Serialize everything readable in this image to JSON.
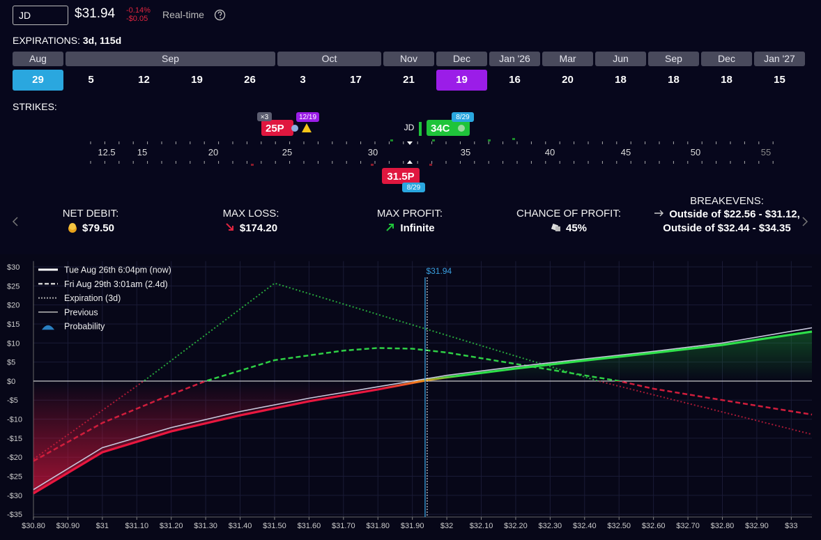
{
  "header": {
    "ticker": "JD",
    "price": "$31.94",
    "change_pct": "-0.14%",
    "change_abs": "-$0.05",
    "mode": "Real-time"
  },
  "expirations": {
    "label": "EXPIRATIONS:",
    "summary": "3d, 115d",
    "months": [
      {
        "name": "Aug",
        "dates": [
          {
            "day": "29",
            "color": "#2aa7df"
          }
        ]
      },
      {
        "name": "Sep",
        "dates": [
          {
            "day": "5"
          },
          {
            "day": "12"
          },
          {
            "day": "19"
          },
          {
            "day": "26"
          }
        ]
      },
      {
        "name": "Oct",
        "dates": [
          {
            "day": "3"
          },
          {
            "day": "17"
          }
        ]
      },
      {
        "name": "Nov",
        "dates": [
          {
            "day": "21"
          }
        ]
      },
      {
        "name": "Dec",
        "dates": [
          {
            "day": "19",
            "color": "#9b1de8"
          }
        ]
      },
      {
        "name": "Jan '26",
        "dates": [
          {
            "day": "16"
          }
        ]
      },
      {
        "name": "Mar",
        "dates": [
          {
            "day": "20"
          }
        ]
      },
      {
        "name": "Jun",
        "dates": [
          {
            "day": "18"
          }
        ]
      },
      {
        "name": "Sep",
        "dates": [
          {
            "day": "18"
          }
        ]
      },
      {
        "name": "Dec",
        "dates": [
          {
            "day": "18"
          }
        ]
      },
      {
        "name": "Jan '27",
        "dates": [
          {
            "day": "15"
          }
        ]
      }
    ]
  },
  "strikes": {
    "label": "STRIKES:",
    "underlying": "JD",
    "ticks": [
      12.5,
      15,
      20,
      25,
      30,
      35,
      40,
      45,
      50,
      55
    ],
    "legs": [
      {
        "label": "25P",
        "count": "×3",
        "expiry": "12/19",
        "color": "#e0173f",
        "badge_color": "#9b1de8"
      },
      {
        "label": "34C",
        "expiry": "8/29",
        "color": "#1fc43a",
        "badge_color": "#2aa7df"
      },
      {
        "label": "31.5P",
        "expiry": "8/29",
        "color": "#e0173f",
        "badge_color": "#2aa7df"
      }
    ]
  },
  "stats": [
    {
      "label": "NET DEBIT:",
      "value": "$79.50"
    },
    {
      "label": "MAX LOSS:",
      "value": "$174.20"
    },
    {
      "label": "MAX PROFIT:",
      "value": "Infinite"
    },
    {
      "label": "CHANCE OF PROFIT:",
      "value": "45%"
    },
    {
      "label": "BREAKEVENS:",
      "value": "Outside of $22.56 - $31.12, Outside of $32.44 - $34.35"
    }
  ],
  "chart_data": {
    "type": "line",
    "xlim": [
      30.8,
      33.06
    ],
    "ylim": [
      -35.7,
      31.5
    ],
    "xticks": [
      {
        "value": 30.8,
        "label": "$30.80"
      },
      {
        "value": 30.9,
        "label": "$30.90"
      },
      {
        "value": 31,
        "label": "$31"
      },
      {
        "value": 31.1,
        "label": "$31.10"
      },
      {
        "value": 31.2,
        "label": "$31.20"
      },
      {
        "value": 31.3,
        "label": "$31.30"
      },
      {
        "value": 31.4,
        "label": "$31.40"
      },
      {
        "value": 31.5,
        "label": "$31.50"
      },
      {
        "value": 31.6,
        "label": "$31.60"
      },
      {
        "value": 31.7,
        "label": "$31.70"
      },
      {
        "value": 31.8,
        "label": "$31.80"
      },
      {
        "value": 31.9,
        "label": "$31.90"
      },
      {
        "value": 32,
        "label": "$32"
      },
      {
        "value": 32.1,
        "label": "$32.10"
      },
      {
        "value": 32.2,
        "label": "$32.20"
      },
      {
        "value": 32.3,
        "label": "$32.30"
      },
      {
        "value": 32.4,
        "label": "$32.40"
      },
      {
        "value": 32.5,
        "label": "$32.50"
      },
      {
        "value": 32.6,
        "label": "$32.60"
      },
      {
        "value": 32.7,
        "label": "$32.70"
      },
      {
        "value": 32.8,
        "label": "$32.80"
      },
      {
        "value": 32.9,
        "label": "$32.90"
      },
      {
        "value": 33,
        "label": "$33"
      }
    ],
    "yticks": [
      {
        "value": 30,
        "label": "$30"
      },
      {
        "value": 25,
        "label": "$25"
      },
      {
        "value": 20,
        "label": "$20"
      },
      {
        "value": 15,
        "label": "$15"
      },
      {
        "value": 10,
        "label": "$10"
      },
      {
        "value": 5,
        "label": "$5"
      },
      {
        "value": 0,
        "label": "$0"
      },
      {
        "value": -5,
        "label": "-$5"
      },
      {
        "value": -10,
        "label": "-$10"
      },
      {
        "value": -15,
        "label": "-$15"
      },
      {
        "value": -20,
        "label": "-$20"
      },
      {
        "value": -25,
        "label": "-$25"
      },
      {
        "value": -30,
        "label": "-$30"
      },
      {
        "value": -35,
        "label": "-$35"
      }
    ],
    "grid": true,
    "current_price": {
      "value": 31.94,
      "label": "$31.94",
      "color": "#3aa0e0"
    },
    "probability_label": "Probability",
    "series": [
      {
        "name": "Tue Aug 26th 6:04pm (now)",
        "style": "solid",
        "x": [
          30.8,
          31.0,
          31.2,
          31.4,
          31.6,
          31.8,
          31.94,
          32.0,
          32.2,
          32.4,
          32.6,
          32.8,
          33.06
        ],
        "values": [
          -29.5,
          -18.7,
          -13.2,
          -9,
          -5.3,
          -2.2,
          0.2,
          1,
          3.3,
          5.4,
          7.4,
          9.5,
          13
        ]
      },
      {
        "name": "Fri Aug 29th 3:01am (2.4d)",
        "style": "dashed",
        "x": [
          30.8,
          31.0,
          31.2,
          31.3,
          31.5,
          31.7,
          31.8,
          31.9,
          32.0,
          32.2,
          32.4,
          32.5,
          32.6,
          32.8,
          33.06
        ],
        "values": [
          -21,
          -11,
          -3.5,
          0,
          5.5,
          8,
          8.7,
          8.5,
          7.5,
          4.5,
          1.5,
          0,
          -2,
          -5,
          -8.8
        ]
      },
      {
        "name": "Expiration (3d)",
        "style": "dotted",
        "x": [
          30.8,
          31.12,
          31.5,
          32.44,
          33.06
        ],
        "values": [
          -20.5,
          0,
          25.7,
          0,
          -14
        ]
      },
      {
        "name": "Previous",
        "style": "thin",
        "color": "#c8c8dc",
        "x": [
          30.8,
          31.0,
          31.2,
          31.4,
          31.6,
          31.8,
          32.0,
          32.2,
          32.4,
          32.6,
          32.8,
          33.06
        ],
        "values": [
          -28.5,
          -17.5,
          -12.2,
          -8,
          -4.5,
          -1.5,
          1.5,
          3.8,
          5.8,
          7.8,
          10,
          14
        ]
      }
    ]
  }
}
